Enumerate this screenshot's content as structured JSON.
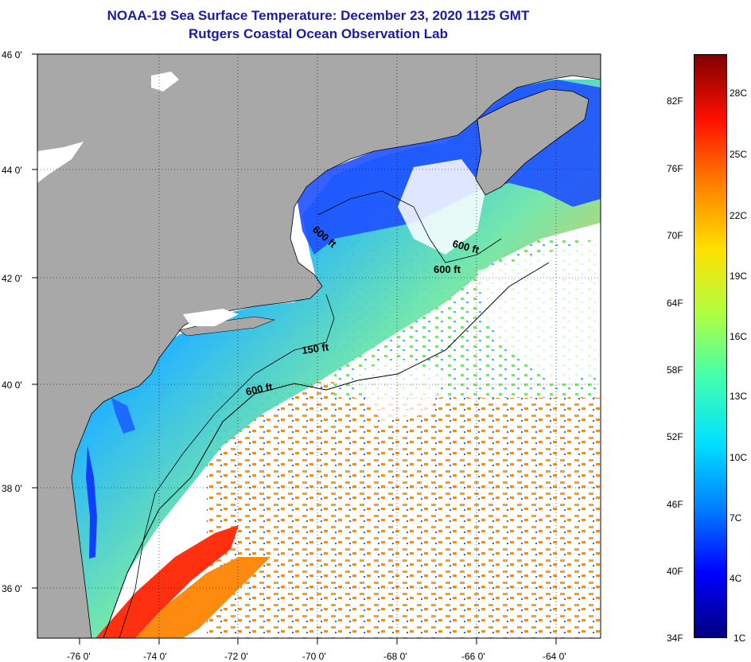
{
  "header": {
    "title": "NOAA-19 Sea Surface Temperature:  December 23, 2020 1125 GMT",
    "subtitle": "Rutgers Coastal Ocean Observation Lab"
  },
  "map": {
    "lon_labels": [
      "-76 0'",
      "-74 0'",
      "-72 0'",
      "-70 0'",
      "-68 0'",
      "-66 0'",
      "-64 0'"
    ],
    "lat_labels": [
      "46 0'",
      "44 0'",
      "42 0'",
      "40 0'",
      "38 0'",
      "36 0'"
    ],
    "contour_labels": [
      "600 ft",
      "600 ft",
      "600 ft",
      "150 ft",
      "600 ft"
    ],
    "colors": {
      "land": "#a8a8a8",
      "cloud": "#ffffff"
    }
  },
  "colorbar": {
    "f_labels": [
      "82F",
      "76F",
      "70F",
      "64F",
      "58F",
      "52F",
      "46F",
      "40F",
      "34F"
    ],
    "c_labels": [
      "28C",
      "25C",
      "22C",
      "19C",
      "16C",
      "13C",
      "10C",
      "7C",
      "4C",
      "1C"
    ],
    "colors": [
      "#00007f",
      "#0000ff",
      "#0080ff",
      "#00e0ff",
      "#40ffb0",
      "#b0ff40",
      "#ffe000",
      "#ff8000",
      "#ff1000",
      "#7f0000"
    ]
  }
}
